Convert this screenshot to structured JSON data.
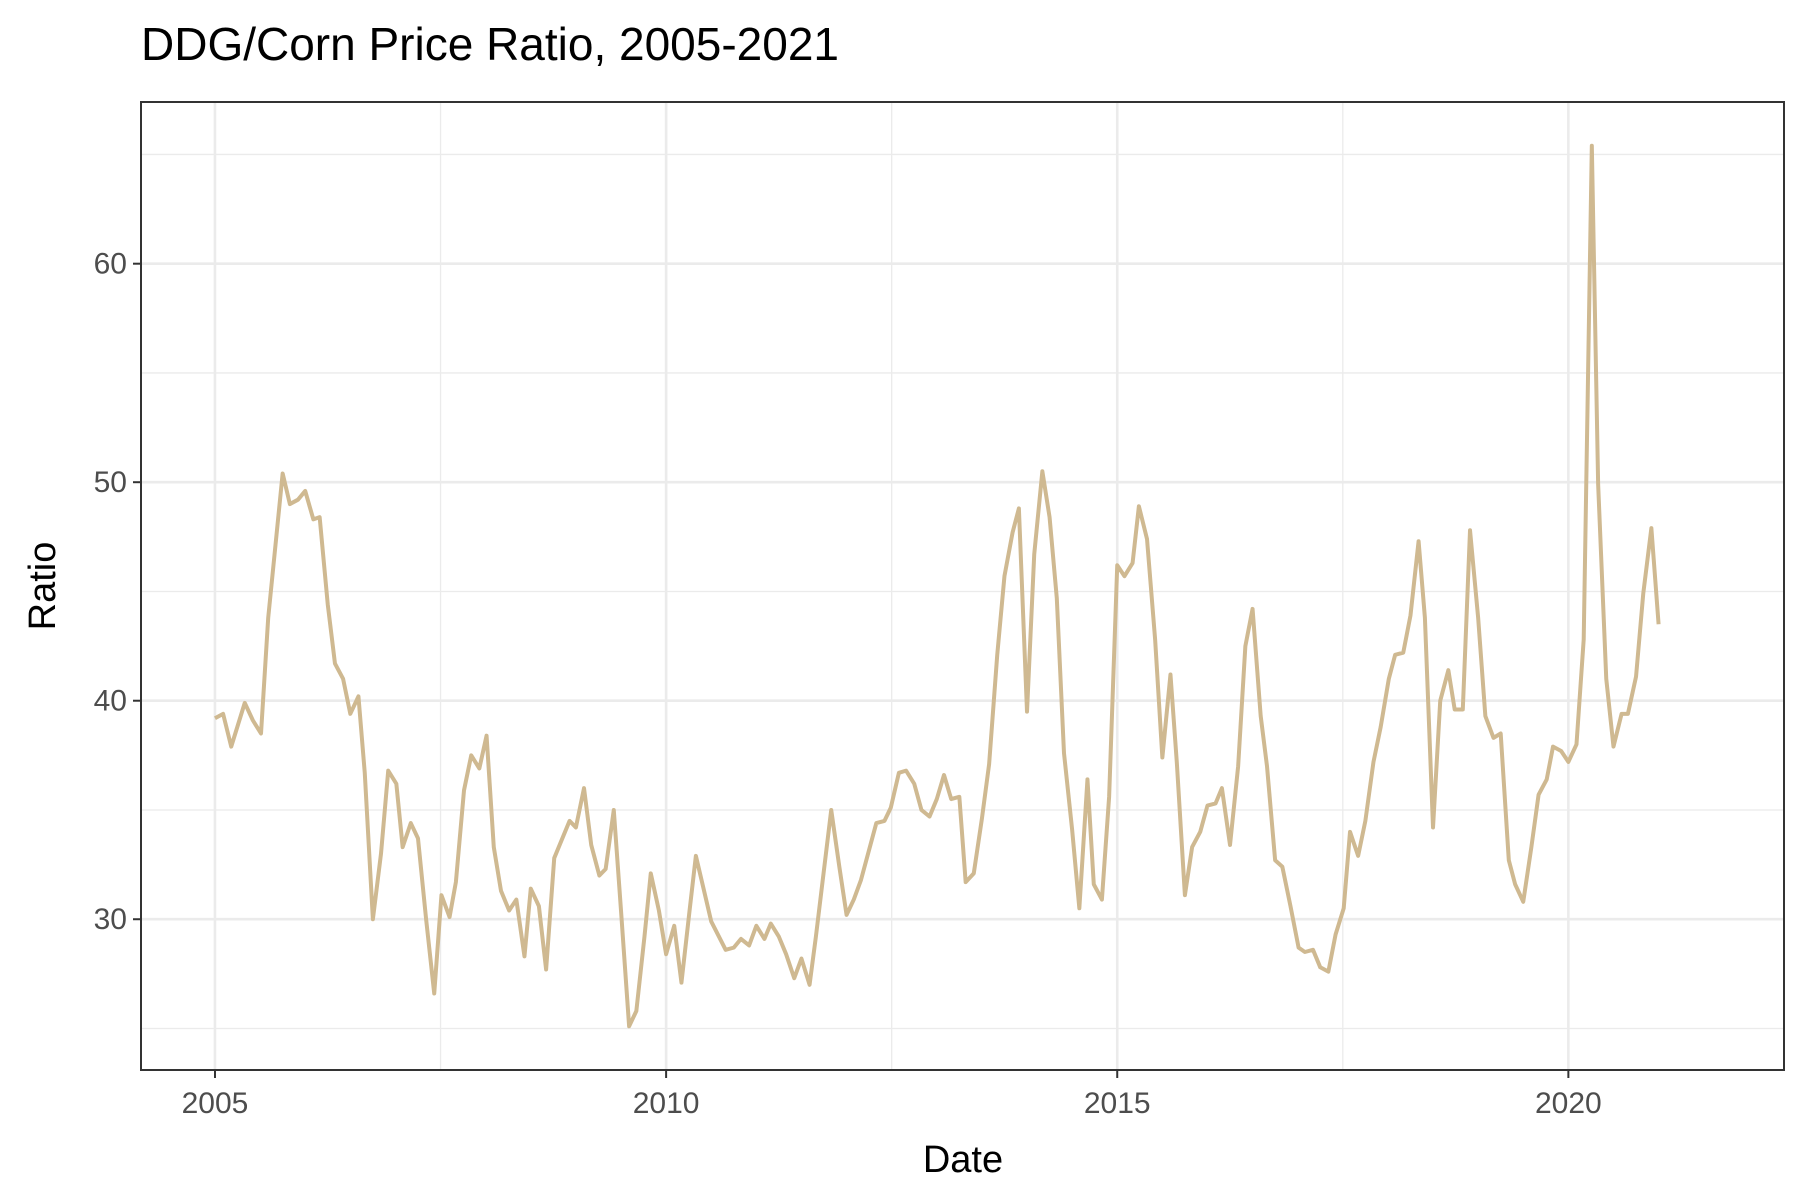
{
  "chart_data": {
    "type": "line",
    "title": "DDG/Corn Price Ratio, 2005-2021",
    "x_label": "Date",
    "y_label": "Ratio",
    "color": "#cfb991",
    "grid": true,
    "xlim": [
      2004.18,
      2022.39
    ],
    "xticks": [
      2005,
      2010,
      2015,
      2020
    ],
    "x_minor_ticks": [
      2007.5,
      2012.5,
      2017.5
    ],
    "ylim": [
      23.1,
      67.4
    ],
    "yticks": [
      30,
      40,
      50,
      60
    ],
    "y_minor_ticks": [
      25,
      35,
      45,
      55,
      65
    ],
    "x": [
      2005.0,
      2005.09,
      2005.18,
      2005.33,
      2005.42,
      2005.51,
      2005.59,
      2005.75,
      2005.83,
      2005.92,
      2006.0,
      2006.09,
      2006.16,
      2006.25,
      2006.33,
      2006.42,
      2006.5,
      2006.59,
      2006.66,
      2006.75,
      2006.84,
      2006.92,
      2007.01,
      2007.08,
      2007.17,
      2007.25,
      2007.34,
      2007.43,
      2007.51,
      2007.6,
      2007.67,
      2007.76,
      2007.84,
      2007.93,
      2008.01,
      2008.09,
      2008.17,
      2008.26,
      2008.34,
      2008.43,
      2008.5,
      2008.59,
      2008.67,
      2008.76,
      2008.93,
      2009.0,
      2009.09,
      2009.17,
      2009.26,
      2009.33,
      2009.42,
      2009.5,
      2009.59,
      2009.67,
      2009.76,
      2009.83,
      2009.92,
      2010.0,
      2010.09,
      2010.17,
      2010.26,
      2010.33,
      2010.5,
      2010.66,
      2010.75,
      2010.83,
      2010.92,
      2011.0,
      2011.09,
      2011.16,
      2011.25,
      2011.33,
      2011.42,
      2011.5,
      2011.59,
      2011.66,
      2011.83,
      2011.92,
      2012.0,
      2012.08,
      2012.16,
      2012.33,
      2012.42,
      2012.49,
      2012.58,
      2012.66,
      2012.75,
      2012.83,
      2012.92,
      2013.0,
      2013.08,
      2013.16,
      2013.25,
      2013.32,
      2013.41,
      2013.5,
      2013.58,
      2013.67,
      2013.75,
      2013.84,
      2013.91,
      2014.0,
      2014.08,
      2014.17,
      2014.25,
      2014.33,
      2014.41,
      2014.5,
      2014.58,
      2014.67,
      2014.74,
      2014.83,
      2014.91,
      2015.0,
      2015.08,
      2015.17,
      2015.24,
      2015.33,
      2015.42,
      2015.5,
      2015.59,
      2015.66,
      2015.75,
      2015.83,
      2015.92,
      2016.0,
      2016.09,
      2016.16,
      2016.25,
      2016.34,
      2016.42,
      2016.5,
      2016.59,
      2016.66,
      2016.75,
      2016.83,
      2016.92,
      2017.01,
      2017.08,
      2017.17,
      2017.25,
      2017.34,
      2017.42,
      2017.51,
      2017.58,
      2017.67,
      2017.75,
      2017.84,
      2017.92,
      2018.01,
      2018.08,
      2018.17,
      2018.25,
      2018.34,
      2018.41,
      2018.5,
      2018.58,
      2018.67,
      2018.74,
      2018.83,
      2018.91,
      2019.0,
      2019.08,
      2019.17,
      2019.25,
      2019.34,
      2019.41,
      2019.5,
      2019.59,
      2019.67,
      2019.76,
      2019.83,
      2019.92,
      2020.0,
      2020.09,
      2020.17,
      2020.26,
      2020.33,
      2020.42,
      2020.5,
      2020.59,
      2020.66,
      2020.75,
      2020.83,
      2020.92,
      2021.0
    ],
    "values": [
      39.2,
      39.4,
      37.9,
      39.9,
      39.1,
      38.5,
      43.8,
      50.4,
      49.0,
      49.2,
      49.6,
      48.3,
      48.4,
      44.4,
      41.7,
      41.0,
      39.4,
      40.2,
      36.7,
      30.0,
      33.0,
      36.8,
      36.2,
      33.3,
      34.4,
      33.7,
      30.0,
      26.6,
      31.1,
      30.1,
      31.7,
      35.9,
      37.5,
      36.9,
      38.4,
      33.3,
      31.3,
      30.4,
      30.9,
      28.3,
      31.4,
      30.6,
      27.7,
      32.8,
      34.5,
      34.2,
      36.0,
      33.4,
      32.0,
      32.3,
      35.0,
      30.4,
      25.1,
      25.8,
      29.2,
      32.1,
      30.4,
      28.4,
      29.7,
      27.1,
      30.4,
      32.9,
      29.9,
      28.6,
      28.7,
      29.1,
      28.8,
      29.7,
      29.1,
      29.8,
      29.2,
      28.4,
      27.3,
      28.2,
      27.0,
      29.2,
      35.0,
      32.4,
      30.2,
      30.9,
      31.8,
      34.4,
      34.5,
      35.1,
      36.7,
      36.8,
      36.2,
      35.0,
      34.7,
      35.5,
      36.6,
      35.5,
      35.6,
      31.7,
      32.1,
      34.6,
      37.1,
      42.1,
      45.7,
      47.7,
      48.8,
      39.5,
      46.7,
      50.5,
      48.4,
      44.7,
      37.6,
      34.1,
      30.5,
      36.4,
      31.6,
      30.9,
      35.6,
      46.2,
      45.7,
      46.3,
      48.9,
      47.4,
      42.8,
      37.4,
      41.2,
      37.2,
      31.1,
      33.3,
      34.0,
      35.2,
      35.3,
      36.0,
      33.4,
      37.0,
      42.5,
      44.2,
      39.3,
      37.0,
      32.7,
      32.4,
      30.6,
      28.7,
      28.5,
      28.6,
      27.8,
      27.6,
      29.3,
      30.5,
      34.0,
      32.9,
      34.5,
      37.2,
      38.8,
      41.0,
      42.1,
      42.2,
      43.9,
      47.3,
      43.8,
      34.2,
      40.0,
      41.4,
      39.6,
      39.6,
      47.8,
      43.8,
      39.3,
      38.3,
      38.5,
      32.7,
      31.6,
      30.8,
      33.3,
      35.7,
      36.4,
      37.9,
      37.7,
      37.2,
      38.0,
      42.8,
      65.4,
      49.9,
      41.0,
      37.9,
      39.4,
      39.4,
      41.1,
      44.9,
      47.9,
      43.5
    ]
  }
}
